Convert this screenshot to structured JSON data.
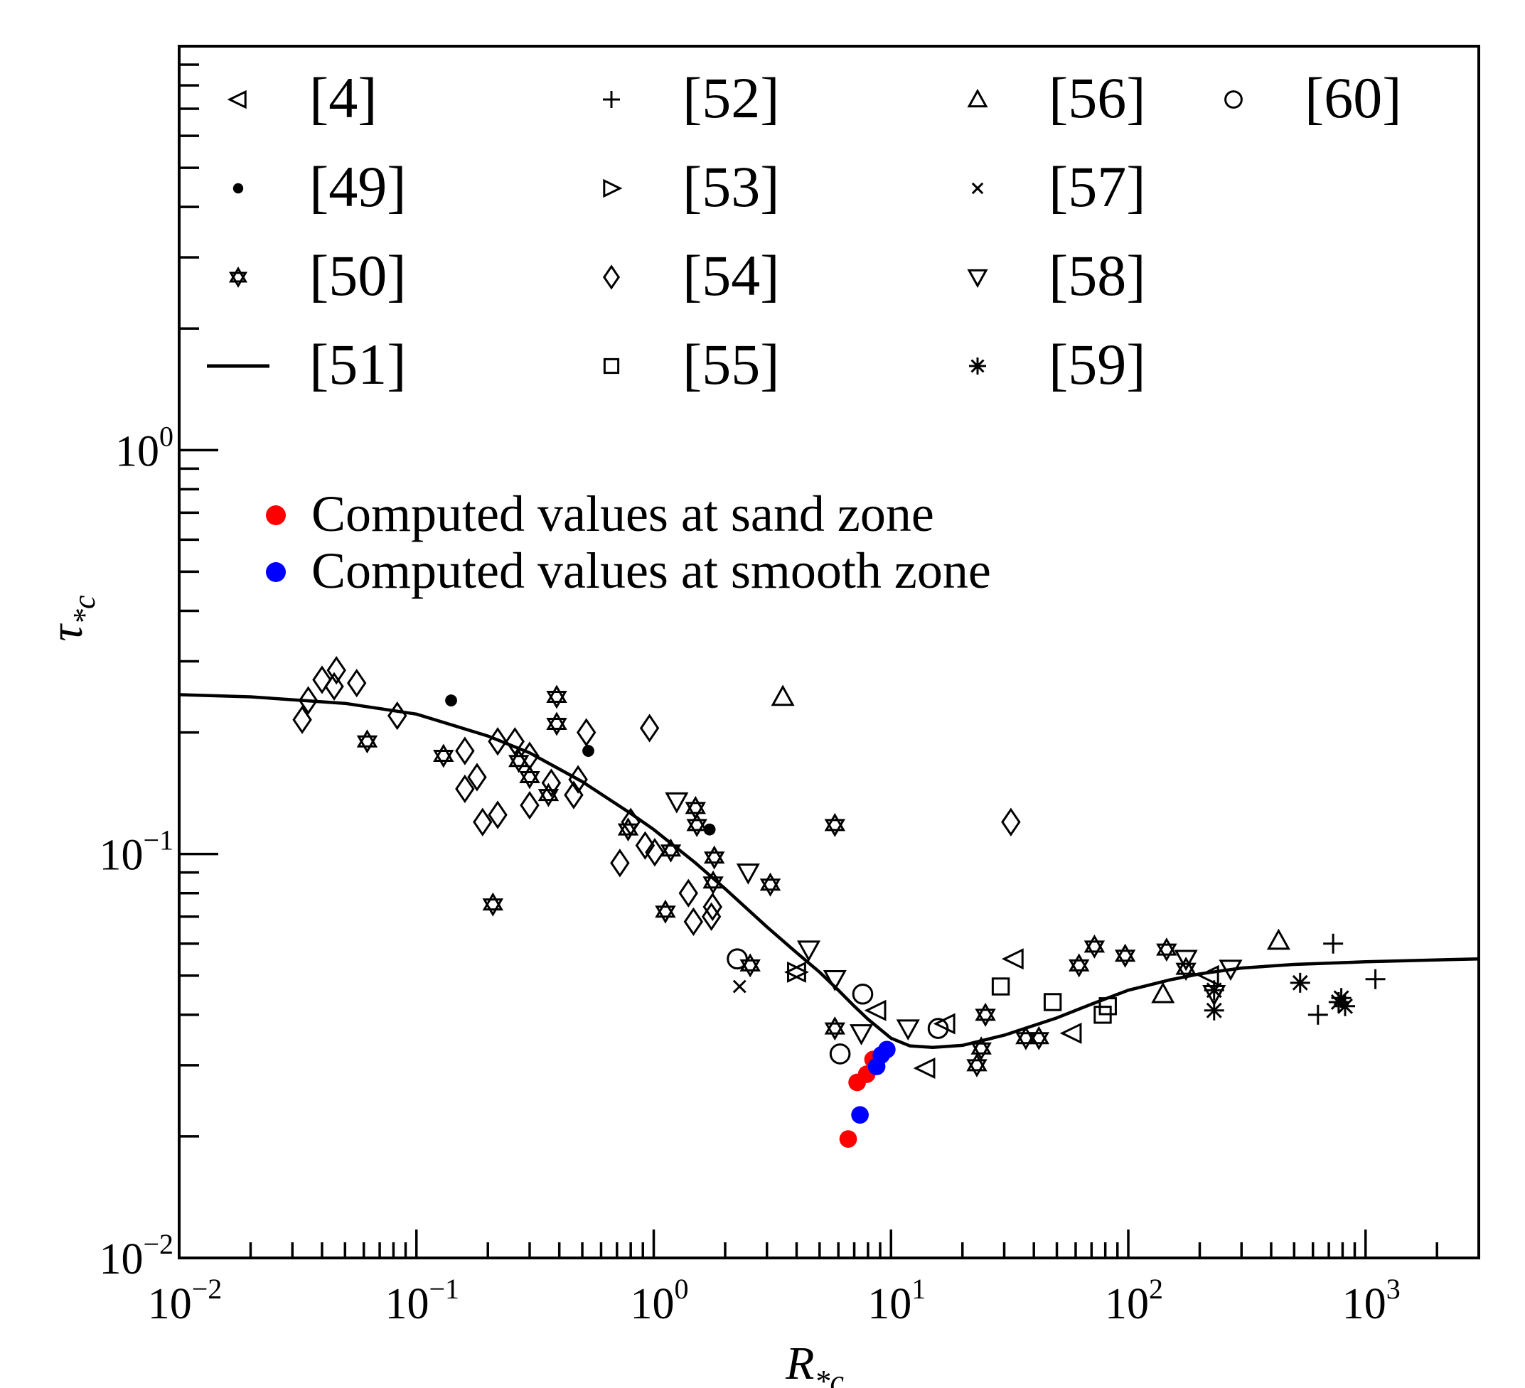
{
  "chart_data": {
    "type": "scatter",
    "title": "",
    "xlabel": {
      "base": "R",
      "sub": "*c"
    },
    "ylabel": {
      "base": "τ",
      "sub": "*c"
    },
    "xscale": "log",
    "yscale": "log",
    "xlim": [
      0.01,
      3000
    ],
    "ylim": [
      0.01,
      10
    ],
    "xticks": [
      {
        "base": "10",
        "exp": "−2",
        "value": 0.01
      },
      {
        "base": "10",
        "exp": "−1",
        "value": 0.1
      },
      {
        "base": "10",
        "exp": "0",
        "value": 1
      },
      {
        "base": "10",
        "exp": "1",
        "value": 10
      },
      {
        "base": "10",
        "exp": "2",
        "value": 100
      },
      {
        "base": "10",
        "exp": "3",
        "value": 1000
      }
    ],
    "yticks": [
      {
        "base": "10",
        "exp": "−2",
        "value": 0.01
      },
      {
        "base": "10",
        "exp": "−1",
        "value": 0.1
      },
      {
        "base": "10",
        "exp": "0",
        "value": 1
      }
    ],
    "grid": false,
    "legend_placement": "top",
    "legend": [
      {
        "label": "[4]",
        "marker": "triangle-left"
      },
      {
        "label": "[49]",
        "marker": "filled-circle"
      },
      {
        "label": "[50]",
        "marker": "star"
      },
      {
        "label": "[51]",
        "marker": "line"
      },
      {
        "label": "[52]",
        "marker": "plus"
      },
      {
        "label": "[53]",
        "marker": "triangle-right"
      },
      {
        "label": "[54]",
        "marker": "diamond"
      },
      {
        "label": "[55]",
        "marker": "square"
      },
      {
        "label": "[56]",
        "marker": "triangle-up"
      },
      {
        "label": "[57]",
        "marker": "x"
      },
      {
        "label": "[58]",
        "marker": "triangle-down"
      },
      {
        "label": "[59]",
        "marker": "asterisk"
      },
      {
        "label": "[60]",
        "marker": "circle"
      }
    ],
    "computed_legend": [
      {
        "label": "Computed values at sand zone",
        "color": "#ff0000"
      },
      {
        "label": "Computed values at smooth zone",
        "color": "#0000ff"
      }
    ],
    "curve": {
      "name": "[51]",
      "x": [
        0.01,
        0.02,
        0.05,
        0.1,
        0.2,
        0.3,
        0.5,
        0.8,
        1,
        1.5,
        2,
        3,
        4,
        5,
        6,
        7,
        8,
        10,
        12,
        15,
        20,
        30,
        50,
        70,
        100,
        150,
        200,
        300,
        500,
        1000,
        3000
      ],
      "y": [
        0.248,
        0.245,
        0.236,
        0.222,
        0.196,
        0.178,
        0.151,
        0.126,
        0.115,
        0.095,
        0.082,
        0.066,
        0.057,
        0.051,
        0.046,
        0.042,
        0.039,
        0.035,
        0.0335,
        0.0332,
        0.0336,
        0.0356,
        0.0393,
        0.0425,
        0.046,
        0.0488,
        0.0505,
        0.0522,
        0.0533,
        0.0541,
        0.055
      ]
    },
    "series": [
      {
        "name": "[4]",
        "marker": "triangle-left",
        "points": [
          [
            4.0,
            0.051
          ],
          [
            8.7,
            0.041
          ],
          [
            14,
            0.0295
          ],
          [
            17,
            0.038
          ],
          [
            33,
            0.055
          ],
          [
            58,
            0.036
          ],
          [
            220,
            0.05
          ]
        ]
      },
      {
        "name": "[49]",
        "marker": "filled-circle",
        "points": [
          [
            0.14,
            0.24
          ],
          [
            0.53,
            0.18
          ],
          [
            1.72,
            0.115
          ]
        ]
      },
      {
        "name": "[50]",
        "marker": "star",
        "points": [
          [
            0.062,
            0.19
          ],
          [
            0.13,
            0.175
          ],
          [
            0.21,
            0.075
          ],
          [
            0.27,
            0.17
          ],
          [
            0.3,
            0.155
          ],
          [
            0.36,
            0.14
          ],
          [
            0.39,
            0.245
          ],
          [
            0.39,
            0.21
          ],
          [
            0.78,
            0.115
          ],
          [
            1.12,
            0.072
          ],
          [
            1.18,
            0.102
          ],
          [
            1.5,
            0.13
          ],
          [
            1.52,
            0.118
          ],
          [
            1.8,
            0.098
          ],
          [
            1.78,
            0.085
          ],
          [
            2.55,
            0.053
          ],
          [
            3.1,
            0.084
          ],
          [
            5.8,
            0.118
          ],
          [
            5.8,
            0.037
          ],
          [
            23,
            0.03
          ],
          [
            24,
            0.033
          ],
          [
            25,
            0.04
          ],
          [
            37,
            0.035
          ],
          [
            42,
            0.035
          ],
          [
            62,
            0.053
          ],
          [
            72,
            0.059
          ],
          [
            97,
            0.056
          ],
          [
            145,
            0.058
          ],
          [
            175,
            0.052
          ]
        ]
      },
      {
        "name": "[52]",
        "marker": "plus",
        "points": [
          [
            630,
            0.04
          ],
          [
            730,
            0.06
          ],
          [
            1100,
            0.049
          ]
        ]
      },
      {
        "name": "[53]",
        "marker": "triangle-right",
        "points": [
          [
            4.0,
            0.051
          ]
        ]
      },
      {
        "name": "[54]",
        "marker": "diamond",
        "points": [
          [
            0.033,
            0.215
          ],
          [
            0.035,
            0.24
          ],
          [
            0.04,
            0.27
          ],
          [
            0.045,
            0.26
          ],
          [
            0.046,
            0.285
          ],
          [
            0.056,
            0.265
          ],
          [
            0.083,
            0.22
          ],
          [
            0.16,
            0.18
          ],
          [
            0.16,
            0.145
          ],
          [
            0.18,
            0.155
          ],
          [
            0.19,
            0.12
          ],
          [
            0.22,
            0.125
          ],
          [
            0.22,
            0.19
          ],
          [
            0.26,
            0.19
          ],
          [
            0.3,
            0.175
          ],
          [
            0.3,
            0.132
          ],
          [
            0.37,
            0.15
          ],
          [
            0.46,
            0.14
          ],
          [
            0.48,
            0.153
          ],
          [
            0.52,
            0.2
          ],
          [
            0.72,
            0.095
          ],
          [
            0.8,
            0.12
          ],
          [
            0.92,
            0.105
          ],
          [
            0.96,
            0.205
          ],
          [
            1.01,
            0.101
          ],
          [
            1.4,
            0.08
          ],
          [
            1.47,
            0.068
          ],
          [
            1.75,
            0.07
          ],
          [
            1.77,
            0.074
          ],
          [
            32,
            0.12
          ]
        ]
      },
      {
        "name": "[55]",
        "marker": "square",
        "points": [
          [
            29,
            0.047
          ],
          [
            48,
            0.043
          ],
          [
            78,
            0.04
          ],
          [
            82,
            0.042
          ]
        ]
      },
      {
        "name": "[56]",
        "marker": "triangle-up",
        "points": [
          [
            3.5,
            0.245
          ],
          [
            140,
            0.045
          ],
          [
            430,
            0.061
          ]
        ]
      },
      {
        "name": "[57]",
        "marker": "x",
        "points": [
          [
            2.3,
            0.047
          ]
        ]
      },
      {
        "name": "[58]",
        "marker": "triangle-down",
        "points": [
          [
            1.25,
            0.135
          ],
          [
            2.5,
            0.09
          ],
          [
            4.5,
            0.058
          ],
          [
            5.8,
            0.049
          ],
          [
            7.5,
            0.036
          ],
          [
            11.8,
            0.037
          ],
          [
            175,
            0.055
          ],
          [
            230,
            0.045
          ],
          [
            270,
            0.052
          ]
        ]
      },
      {
        "name": "[59]",
        "marker": "asterisk",
        "points": [
          [
            230,
            0.041
          ],
          [
            230,
            0.046
          ],
          [
            530,
            0.048
          ],
          [
            770,
            0.043
          ],
          [
            790,
            0.044
          ],
          [
            820,
            0.042
          ]
        ]
      },
      {
        "name": "[60]",
        "marker": "circle",
        "points": [
          [
            2.25,
            0.055
          ],
          [
            6.1,
            0.032
          ],
          [
            7.6,
            0.045
          ],
          [
            15.8,
            0.037
          ]
        ]
      },
      {
        "name": "Computed values at sand zone",
        "marker": "filled-dot",
        "color": "#ff0000",
        "points": [
          [
            6.6,
            0.0197
          ],
          [
            7.2,
            0.0272
          ],
          [
            7.9,
            0.0285
          ],
          [
            8.4,
            0.031
          ]
        ]
      },
      {
        "name": "Computed values at smooth zone",
        "marker": "filled-dot",
        "color": "#0000ff",
        "points": [
          [
            7.4,
            0.0226
          ],
          [
            8.7,
            0.0298
          ],
          [
            9.1,
            0.0318
          ],
          [
            9.6,
            0.0328
          ]
        ]
      }
    ]
  }
}
